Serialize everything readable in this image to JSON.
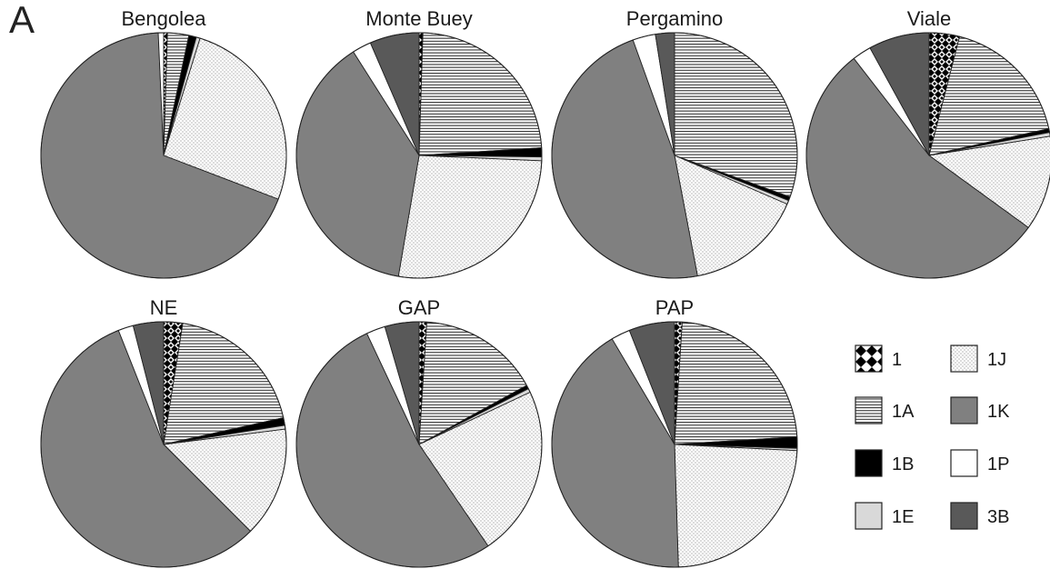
{
  "panel_label": "A",
  "chart_data": [
    {
      "type": "pie",
      "title": "Bengolea",
      "slices": [
        {
          "label": "1",
          "value": 0.5
        },
        {
          "label": "1A",
          "value": 2.8
        },
        {
          "label": "1B",
          "value": 1.0
        },
        {
          "label": "1E",
          "value": 0.5
        },
        {
          "label": "1J",
          "value": 26.0
        },
        {
          "label": "1K",
          "value": 68.5
        },
        {
          "label": "1P",
          "value": 0.7
        },
        {
          "label": "3B",
          "value": 0.0
        }
      ]
    },
    {
      "type": "pie",
      "title": "Monte Buey",
      "slices": [
        {
          "label": "1",
          "value": 0.5
        },
        {
          "label": "1A",
          "value": 23.5
        },
        {
          "label": "1B",
          "value": 1.2
        },
        {
          "label": "1E",
          "value": 0.5
        },
        {
          "label": "1J",
          "value": 27.0
        },
        {
          "label": "1K",
          "value": 38.3
        },
        {
          "label": "1P",
          "value": 2.5
        },
        {
          "label": "3B",
          "value": 6.5
        }
      ]
    },
    {
      "type": "pie",
      "title": "Pergamino",
      "slices": [
        {
          "label": "1",
          "value": 0.0
        },
        {
          "label": "1A",
          "value": 30.5
        },
        {
          "label": "1B",
          "value": 0.5
        },
        {
          "label": "1E",
          "value": 0.5
        },
        {
          "label": "1J",
          "value": 15.5
        },
        {
          "label": "1K",
          "value": 47.5
        },
        {
          "label": "1P",
          "value": 3.0
        },
        {
          "label": "3B",
          "value": 2.5
        }
      ]
    },
    {
      "type": "pie",
      "title": "Viale",
      "slices": [
        {
          "label": "1",
          "value": 4.0
        },
        {
          "label": "1A",
          "value": 17.5
        },
        {
          "label": "1B",
          "value": 0.5
        },
        {
          "label": "1E",
          "value": 0.5
        },
        {
          "label": "1J",
          "value": 12.5
        },
        {
          "label": "1K",
          "value": 54.5
        },
        {
          "label": "1P",
          "value": 2.5
        },
        {
          "label": "3B",
          "value": 8.0
        }
      ]
    },
    {
      "type": "pie",
      "title": "NE",
      "slices": [
        {
          "label": "1",
          "value": 2.5
        },
        {
          "label": "1A",
          "value": 19.0
        },
        {
          "label": "1B",
          "value": 1.0
        },
        {
          "label": "1E",
          "value": 0.5
        },
        {
          "label": "1J",
          "value": 14.5
        },
        {
          "label": "1K",
          "value": 56.5
        },
        {
          "label": "1P",
          "value": 2.0
        },
        {
          "label": "3B",
          "value": 4.0
        }
      ]
    },
    {
      "type": "pie",
      "title": "GAP",
      "slices": [
        {
          "label": "1",
          "value": 1.0
        },
        {
          "label": "1A",
          "value": 16.0
        },
        {
          "label": "1B",
          "value": 0.5
        },
        {
          "label": "1E",
          "value": 0.5
        },
        {
          "label": "1J",
          "value": 22.5
        },
        {
          "label": "1K",
          "value": 52.5
        },
        {
          "label": "1P",
          "value": 2.5
        },
        {
          "label": "3B",
          "value": 4.5
        }
      ]
    },
    {
      "type": "pie",
      "title": "PAP",
      "slices": [
        {
          "label": "1",
          "value": 1.0
        },
        {
          "label": "1A",
          "value": 23.0
        },
        {
          "label": "1B",
          "value": 1.5
        },
        {
          "label": "1E",
          "value": 0.3
        },
        {
          "label": "1J",
          "value": 23.7
        },
        {
          "label": "1K",
          "value": 42.0
        },
        {
          "label": "1P",
          "value": 2.5
        },
        {
          "label": "3B",
          "value": 6.0
        }
      ]
    }
  ],
  "legend": [
    {
      "label": "1",
      "pattern": "diamond-checker"
    },
    {
      "label": "1J",
      "pattern": "dots"
    },
    {
      "label": "1A",
      "pattern": "horizontal-lines"
    },
    {
      "label": "1K",
      "pattern": "solid",
      "color": "#808080"
    },
    {
      "label": "1B",
      "pattern": "solid",
      "color": "#000000"
    },
    {
      "label": "1P",
      "pattern": "solid",
      "color": "#ffffff"
    },
    {
      "label": "1E",
      "pattern": "solid",
      "color": "#d9d9d9"
    },
    {
      "label": "3B",
      "pattern": "solid",
      "color": "#595959"
    }
  ]
}
